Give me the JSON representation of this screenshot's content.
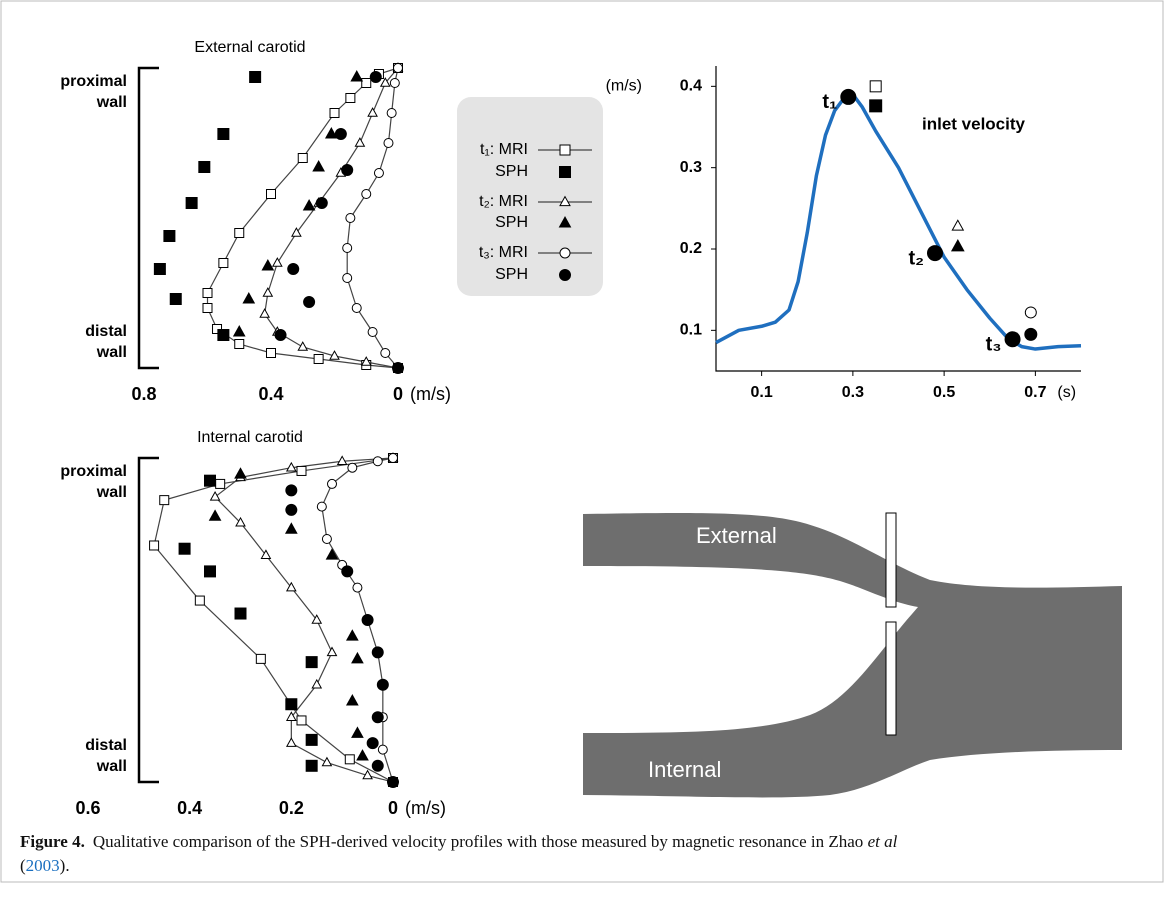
{
  "chart_data": [
    {
      "type": "profile",
      "title": "External carotid",
      "y_labels": {
        "top": [
          "proximal",
          "wall"
        ],
        "bottom": [
          "distal",
          "wall"
        ]
      },
      "xlim": [
        0.8,
        0
      ],
      "xticks": [
        0.8,
        0.4,
        0
      ],
      "x_unit": "(m/s)",
      "series": [
        {
          "name": "t₁: MRI",
          "marker": "square",
          "filled": false,
          "line": true,
          "color": "#000000",
          "values": [
            0,
            0.06,
            0.1,
            0.15,
            0.2,
            0.3,
            0.4,
            0.5,
            0.55,
            0.6,
            0.6,
            0.57,
            0.5,
            0.4,
            0.25,
            0.1,
            0
          ],
          "position": [
            0,
            0.02,
            0.05,
            0.1,
            0.15,
            0.3,
            0.42,
            0.55,
            0.65,
            0.75,
            0.8,
            0.87,
            0.92,
            0.95,
            0.97,
            0.99,
            1
          ]
        },
        {
          "name": "SPH",
          "marker": "square",
          "filled": true,
          "line": false,
          "color": "#000000",
          "values": [
            0.45,
            0.55,
            0.61,
            0.65,
            0.72,
            0.75,
            0.7,
            0.55
          ],
          "position": [
            0.03,
            0.22,
            0.33,
            0.45,
            0.56,
            0.67,
            0.77,
            0.89
          ]
        },
        {
          "name": "t₂: MRI",
          "marker": "triangle",
          "filled": false,
          "line": true,
          "color": "#000000",
          "values": [
            0,
            0.04,
            0.08,
            0.12,
            0.18,
            0.25,
            0.32,
            0.38,
            0.41,
            0.42,
            0.38,
            0.3,
            0.2,
            0.1,
            0
          ],
          "position": [
            0,
            0.05,
            0.15,
            0.25,
            0.35,
            0.45,
            0.55,
            0.65,
            0.75,
            0.82,
            0.88,
            0.93,
            0.96,
            0.98,
            1
          ]
        },
        {
          "name": "SPH",
          "marker": "triangle",
          "filled": true,
          "line": false,
          "color": "#000000",
          "values": [
            0.13,
            0.21,
            0.25,
            0.28,
            0.41,
            0.47,
            0.5
          ],
          "position": [
            0.03,
            0.22,
            0.33,
            0.46,
            0.66,
            0.77,
            0.88
          ]
        },
        {
          "name": "t₃: MRI",
          "marker": "circle",
          "filled": false,
          "line": true,
          "color": "#000000",
          "values": [
            0,
            0.01,
            0.02,
            0.03,
            0.06,
            0.1,
            0.15,
            0.16,
            0.16,
            0.13,
            0.08,
            0.04,
            0
          ],
          "position": [
            0,
            0.05,
            0.15,
            0.25,
            0.35,
            0.42,
            0.5,
            0.6,
            0.7,
            0.8,
            0.88,
            0.95,
            1
          ]
        },
        {
          "name": "SPH",
          "marker": "circle",
          "filled": true,
          "line": false,
          "color": "#000000",
          "values": [
            0.07,
            0.18,
            0.16,
            0.24,
            0.33,
            0.28,
            0.37,
            0
          ],
          "position": [
            0.03,
            0.22,
            0.34,
            0.45,
            0.67,
            0.78,
            0.89,
            1
          ]
        }
      ]
    },
    {
      "type": "profile",
      "title": "Internal carotid",
      "y_labels": {
        "top": [
          "proximal",
          "wall"
        ],
        "bottom": [
          "distal",
          "wall"
        ]
      },
      "xlim": [
        0.6,
        0
      ],
      "xticks": [
        0.6,
        0.4,
        0.2,
        0
      ],
      "x_unit": "(m/s)",
      "series": [
        {
          "marker": "square",
          "filled": false,
          "line": true,
          "color": "#000000",
          "values": [
            0,
            0.18,
            0.34,
            0.45,
            0.47,
            0.38,
            0.26,
            0.18,
            0.085,
            0
          ],
          "position": [
            0,
            0.04,
            0.08,
            0.13,
            0.27,
            0.44,
            0.62,
            0.81,
            0.93,
            1
          ]
        },
        {
          "marker": "square",
          "filled": true,
          "line": false,
          "color": "#000000",
          "values": [
            0.36,
            0.41,
            0.36,
            0.3,
            0.16,
            0.2,
            0.16,
            0.16
          ],
          "position": [
            0.07,
            0.28,
            0.35,
            0.48,
            0.63,
            0.76,
            0.87,
            0.95
          ]
        },
        {
          "marker": "triangle",
          "filled": false,
          "line": true,
          "color": "#000000",
          "values": [
            0,
            0.1,
            0.2,
            0.3,
            0.35,
            0.3,
            0.25,
            0.2,
            0.15,
            0.12,
            0.15,
            0.2,
            0.2,
            0.13,
            0.05,
            0
          ],
          "position": [
            0,
            0.01,
            0.03,
            0.06,
            0.12,
            0.2,
            0.3,
            0.4,
            0.5,
            0.6,
            0.7,
            0.8,
            0.88,
            0.94,
            0.98,
            1
          ]
        },
        {
          "marker": "triangle",
          "filled": true,
          "line": false,
          "color": "#000000",
          "values": [
            0.3,
            0.35,
            0.2,
            0.12,
            0.08,
            0.07,
            0.08,
            0.07,
            0.06
          ],
          "position": [
            0.05,
            0.18,
            0.22,
            0.3,
            0.55,
            0.62,
            0.75,
            0.85,
            0.92
          ]
        },
        {
          "marker": "circle",
          "filled": false,
          "line": true,
          "color": "#000000",
          "values": [
            0,
            0.03,
            0.08,
            0.12,
            0.14,
            0.13,
            0.1,
            0.07,
            0.05,
            0.03,
            0.02,
            0.02,
            0.02,
            0
          ],
          "position": [
            0,
            0.01,
            0.03,
            0.08,
            0.15,
            0.25,
            0.33,
            0.4,
            0.5,
            0.6,
            0.7,
            0.8,
            0.9,
            1
          ]
        },
        {
          "marker": "circle",
          "filled": true,
          "line": false,
          "color": "#000000",
          "values": [
            0.2,
            0.2,
            0.09,
            0.05,
            0.03,
            0.02,
            0.03,
            0.04,
            0.03,
            0
          ],
          "position": [
            0.1,
            0.16,
            0.35,
            0.5,
            0.6,
            0.7,
            0.8,
            0.88,
            0.95,
            1
          ]
        }
      ]
    },
    {
      "type": "line",
      "label": "inlet velocity",
      "y_unit": "(m/s)",
      "x_unit": "(s)",
      "xlim": [
        0,
        0.8
      ],
      "ylim": [
        0.05,
        0.425
      ],
      "xticks": [
        0.1,
        0.3,
        0.5,
        0.7
      ],
      "yticks": [
        0.4,
        0.3,
        0.2,
        0.1
      ],
      "color": "#1f6fbf",
      "x": [
        0,
        0.05,
        0.1,
        0.13,
        0.16,
        0.18,
        0.2,
        0.22,
        0.24,
        0.26,
        0.28,
        0.3,
        0.32,
        0.35,
        0.4,
        0.45,
        0.5,
        0.55,
        0.6,
        0.64,
        0.67,
        0.7,
        0.75,
        0.8
      ],
      "values": [
        0.085,
        0.1,
        0.105,
        0.11,
        0.125,
        0.16,
        0.22,
        0.29,
        0.34,
        0.37,
        0.385,
        0.39,
        0.375,
        0.345,
        0.3,
        0.245,
        0.19,
        0.15,
        0.115,
        0.09,
        0.08,
        0.077,
        0.08,
        0.081
      ],
      "time_points": {
        "labels": [
          "t₁",
          "t₂",
          "t₃"
        ],
        "x": [
          0.29,
          0.48,
          0.65
        ],
        "values": [
          0.387,
          0.195,
          0.089
        ]
      },
      "mri": {
        "x": [
          0.35,
          0.53,
          0.69
        ],
        "values": [
          0.4,
          0.228,
          0.122
        ],
        "markers": [
          "square",
          "triangle",
          "circle"
        ]
      },
      "sph": {
        "x": [
          0.35,
          0.53,
          0.69
        ],
        "values": [
          0.376,
          0.203,
          0.095
        ],
        "markers": [
          "square",
          "triangle",
          "circle"
        ]
      }
    }
  ],
  "diagram": {
    "labels": [
      "External",
      "Internal"
    ]
  },
  "caption": {
    "label": "Figure 4.",
    "text": "Qualitative comparison of the SPH-derived velocity profiles with those measured by magnetic resonance in Zhao",
    "italic": "et al",
    "citation": [
      "(",
      "2003",
      ")."
    ]
  }
}
